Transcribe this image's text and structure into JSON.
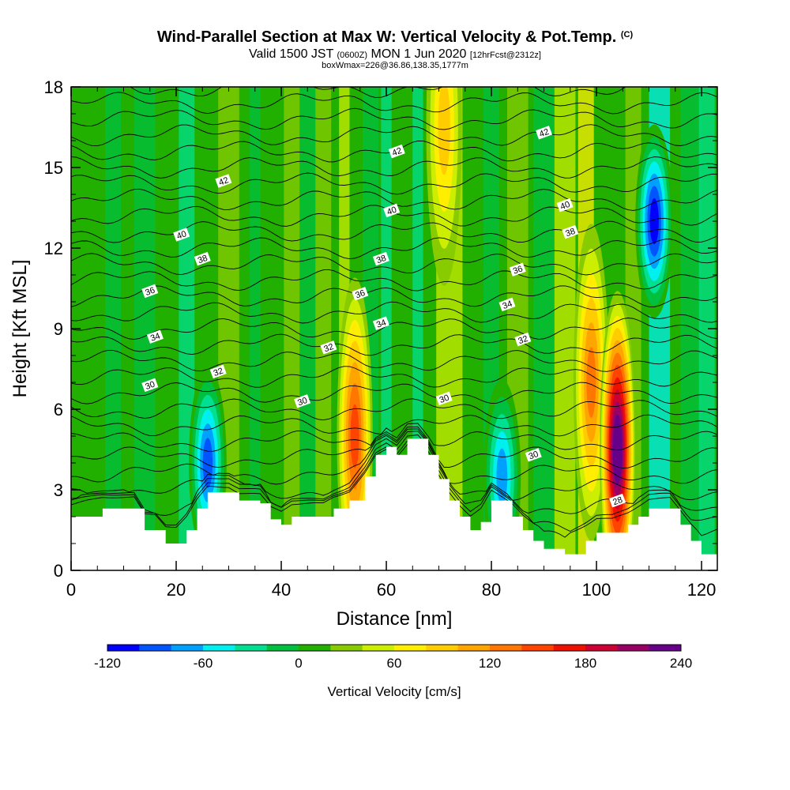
{
  "title": {
    "main": "Wind-Parallel Section at Max W: Vertical Velocity & Pot.Temp.",
    "copyright": "(C)",
    "valid_prefix": "Valid 1500 JST",
    "valid_utc": "(0600Z)",
    "valid_date": "MON 1 Jun 2020",
    "forecast": "[12hrFcst@2312z]",
    "box": "boxWmax=226@36.86,138.35,1777m"
  },
  "chart_data": {
    "type": "heatmap",
    "xlabel": "Distance [nm]",
    "ylabel": "Height [Kft MSL]",
    "xlim": [
      0,
      123
    ],
    "ylim": [
      0,
      18
    ],
    "xticks": [
      0,
      20,
      40,
      60,
      80,
      100,
      120
    ],
    "yticks": [
      0,
      3,
      6,
      9,
      12,
      15,
      18
    ],
    "colorbar": {
      "title": "Vertical Velocity [cm/s]",
      "min": -120,
      "max": 240,
      "step": 20,
      "labels": [
        -120,
        -60,
        0,
        60,
        120,
        180,
        240
      ],
      "colors": [
        "#0000ff",
        "#0055ff",
        "#00a0ff",
        "#00f0f0",
        "#00e090",
        "#00c040",
        "#22b000",
        "#88cc00",
        "#ccee00",
        "#ffee00",
        "#ffcc00",
        "#ffa500",
        "#ff7700",
        "#ff4400",
        "#ee1100",
        "#cc0033",
        "#990066",
        "#660088"
      ]
    },
    "terrain_kft": [
      [
        0,
        2.0
      ],
      [
        6,
        2.3
      ],
      [
        12,
        2.3
      ],
      [
        14,
        1.5
      ],
      [
        16,
        1.5
      ],
      [
        18,
        1.0
      ],
      [
        20,
        1.0
      ],
      [
        22,
        1.5
      ],
      [
        24,
        2.3
      ],
      [
        26,
        2.9
      ],
      [
        30,
        2.9
      ],
      [
        32,
        2.6
      ],
      [
        36,
        2.5
      ],
      [
        38,
        1.9
      ],
      [
        40,
        1.7
      ],
      [
        42,
        2.0
      ],
      [
        44,
        2.0
      ],
      [
        48,
        2.0
      ],
      [
        50,
        2.3
      ],
      [
        53,
        2.6
      ],
      [
        56,
        3.5
      ],
      [
        58,
        4.3
      ],
      [
        60,
        4.6
      ],
      [
        62,
        4.3
      ],
      [
        64,
        4.9
      ],
      [
        66,
        4.9
      ],
      [
        68,
        4.3
      ],
      [
        70,
        3.4
      ],
      [
        72,
        2.6
      ],
      [
        74,
        2.0
      ],
      [
        76,
        1.5
      ],
      [
        78,
        1.8
      ],
      [
        80,
        2.6
      ],
      [
        84,
        2.0
      ],
      [
        86,
        1.5
      ],
      [
        88,
        1.1
      ],
      [
        90,
        0.8
      ],
      [
        94,
        0.6
      ],
      [
        98,
        1.1
      ],
      [
        100,
        1.4
      ],
      [
        103,
        1.4
      ],
      [
        106,
        1.7
      ],
      [
        108,
        2.0
      ],
      [
        110,
        2.3
      ],
      [
        114,
        2.3
      ],
      [
        116,
        1.7
      ],
      [
        118,
        1.1
      ],
      [
        120,
        0.6
      ],
      [
        123,
        0.3
      ]
    ],
    "updraft_cores": [
      {
        "x": 54,
        "y_kft": 5.0,
        "w_cms": 140
      },
      {
        "x": 71,
        "y_kft": 16.5,
        "w_cms": 80
      },
      {
        "x": 99,
        "y_kft": 7.0,
        "w_cms": 120
      },
      {
        "x": 104,
        "y_kft": 4.5,
        "w_cms": 226
      }
    ],
    "downdraft_cores": [
      {
        "x": 26,
        "y_kft": 4.0,
        "w_cms": -80
      },
      {
        "x": 82,
        "y_kft": 3.5,
        "w_cms": -60
      },
      {
        "x": 111,
        "y_kft": 13.0,
        "w_cms": -100
      }
    ],
    "isentrope_labels": [
      {
        "x": 29,
        "y_kft": 14.5,
        "text": "42"
      },
      {
        "x": 62,
        "y_kft": 15.6,
        "text": "42"
      },
      {
        "x": 90,
        "y_kft": 16.3,
        "text": "42"
      },
      {
        "x": 21,
        "y_kft": 12.5,
        "text": "40"
      },
      {
        "x": 61,
        "y_kft": 13.4,
        "text": "40"
      },
      {
        "x": 94,
        "y_kft": 13.6,
        "text": "40"
      },
      {
        "x": 25,
        "y_kft": 11.6,
        "text": "38"
      },
      {
        "x": 59,
        "y_kft": 11.6,
        "text": "38"
      },
      {
        "x": 95,
        "y_kft": 12.6,
        "text": "38"
      },
      {
        "x": 15,
        "y_kft": 10.4,
        "text": "36"
      },
      {
        "x": 55,
        "y_kft": 10.3,
        "text": "36"
      },
      {
        "x": 85,
        "y_kft": 11.2,
        "text": "36"
      },
      {
        "x": 16,
        "y_kft": 8.7,
        "text": "34"
      },
      {
        "x": 59,
        "y_kft": 9.2,
        "text": "34"
      },
      {
        "x": 83,
        "y_kft": 9.9,
        "text": "34"
      },
      {
        "x": 28,
        "y_kft": 7.4,
        "text": "32"
      },
      {
        "x": 49,
        "y_kft": 8.3,
        "text": "32"
      },
      {
        "x": 86,
        "y_kft": 8.6,
        "text": "32"
      },
      {
        "x": 15,
        "y_kft": 6.9,
        "text": "30"
      },
      {
        "x": 44,
        "y_kft": 6.3,
        "text": "30"
      },
      {
        "x": 71,
        "y_kft": 6.4,
        "text": "30"
      },
      {
        "x": 88,
        "y_kft": 4.3,
        "text": "30"
      },
      {
        "x": 104,
        "y_kft": 2.6,
        "text": "28"
      }
    ]
  }
}
